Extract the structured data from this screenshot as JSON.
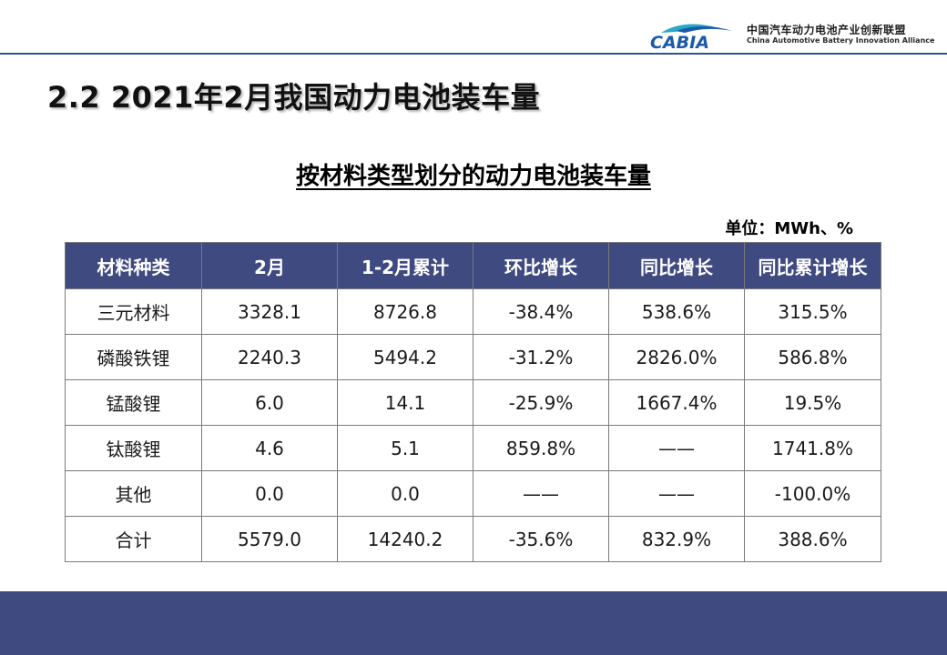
{
  "header": {
    "logo_text_cn": "中国汽车动力电池产业创新联盟",
    "logo_text_en": "China Automotive Battery Innovation Alliance",
    "logo_abbr": "CABIA"
  },
  "slide_title": "2.2  2021年2月我国动力电池装车量",
  "table_title": "按材料类型划分的动力电池装车量",
  "unit": "单位：MWh、%",
  "table": {
    "columns": [
      "材料种类",
      "2月",
      "1-2月累计",
      "环比增长",
      "同比增长",
      "同比累计增长"
    ],
    "rows": [
      [
        "三元材料",
        "3328.1",
        "8726.8",
        "-38.4%",
        "538.6%",
        "315.5%"
      ],
      [
        "磷酸铁锂",
        "2240.3",
        "5494.2",
        "-31.2%",
        "2826.0%",
        "586.8%"
      ],
      [
        "锰酸锂",
        "6.0",
        "14.1",
        "-25.9%",
        "1667.4%",
        "19.5%"
      ],
      [
        "钛酸锂",
        "4.6",
        "5.1",
        "859.8%",
        "——",
        "1741.8%"
      ],
      [
        "其他",
        "0.0",
        "0.0",
        "——",
        "——",
        "-100.0%"
      ],
      [
        "合计",
        "5579.0",
        "14240.2",
        "-35.6%",
        "832.9%",
        "388.6%"
      ]
    ]
  },
  "colors": {
    "header_fill": "#3e4a80",
    "footer_band": "#3e4a80",
    "rule": "#2f4f9a",
    "logo_blue": "#1a5aa8",
    "logo_teal": "#2aa8c8"
  },
  "icons": {
    "logo": "cabia-car-swoosh-logo"
  }
}
